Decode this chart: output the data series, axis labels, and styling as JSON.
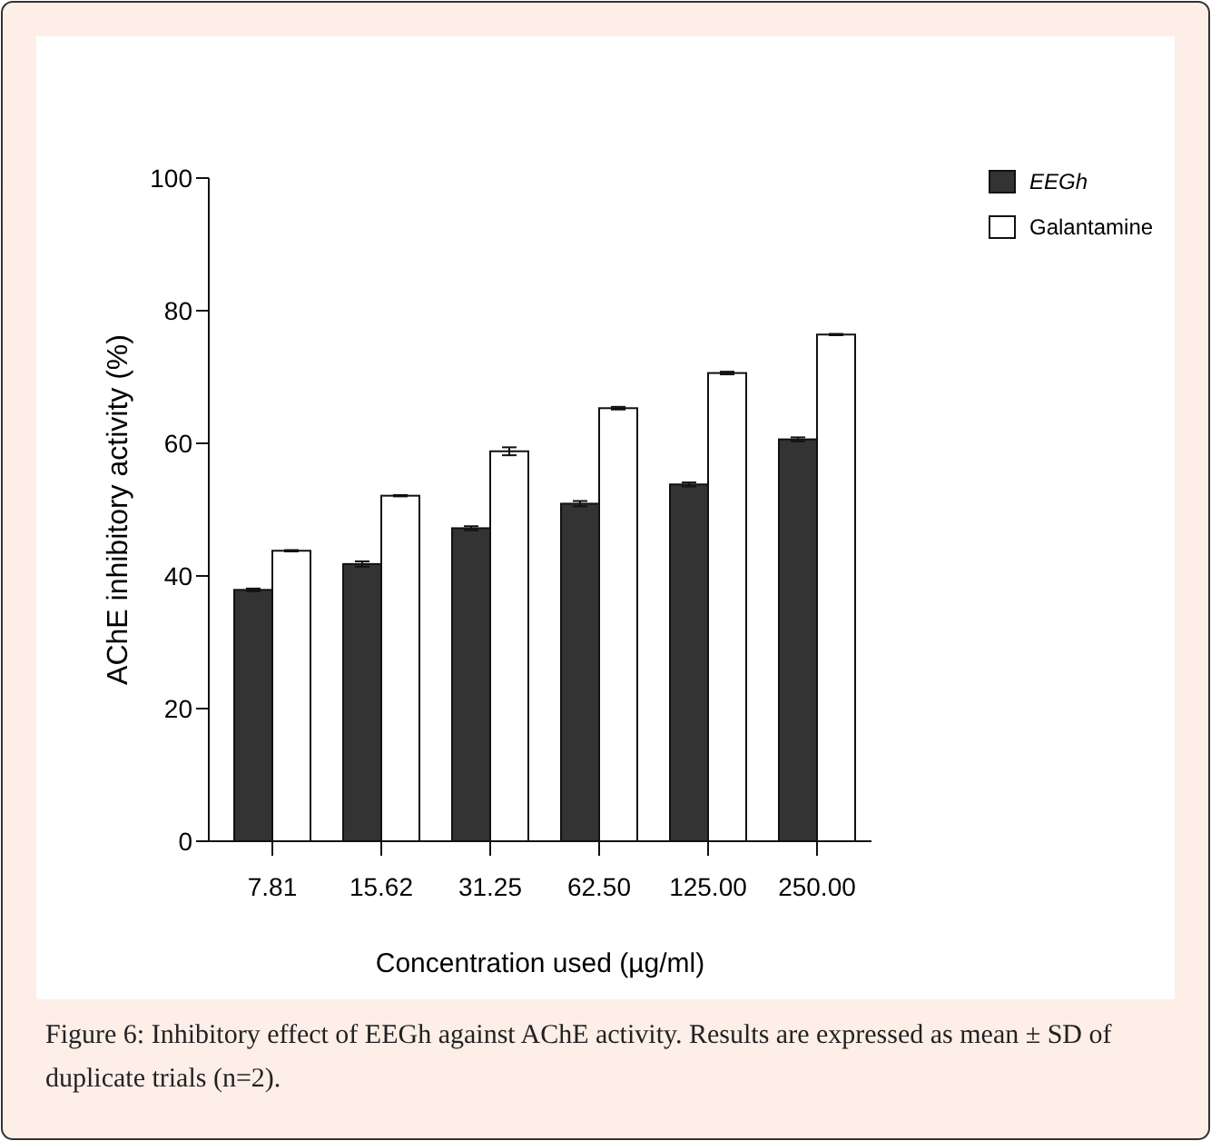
{
  "chart_data": {
    "type": "bar",
    "xlabel": "Concentration used (µg/ml)",
    "ylabel": "AChE inhibitory activity (%)",
    "categories": [
      "7.81",
      "15.62",
      "31.25",
      "62.50",
      "125.00",
      "250.00"
    ],
    "series": [
      {
        "name": "EEGh",
        "color": "#333333",
        "values": [
          37.9,
          41.8,
          47.2,
          50.9,
          53.8,
          60.6
        ],
        "errors": [
          0.2,
          0.4,
          0.3,
          0.4,
          0.3,
          0.3
        ]
      },
      {
        "name": "Galantamine",
        "color": "#ffffff",
        "values": [
          43.8,
          52.1,
          58.8,
          65.3,
          70.6,
          76.4
        ],
        "errors": [
          0.1,
          0.1,
          0.6,
          0.2,
          0.2,
          0.1
        ]
      }
    ],
    "ylim": [
      0,
      100
    ],
    "yticks": [
      0,
      20,
      40,
      60,
      80,
      100
    ],
    "grid": false,
    "legend": "top right",
    "annotations": [
      "Figure 6: Inhibitory effect of EEGh against AChE activity. Results are expressed as mean ± SD of duplicate trials (n=2)."
    ]
  }
}
